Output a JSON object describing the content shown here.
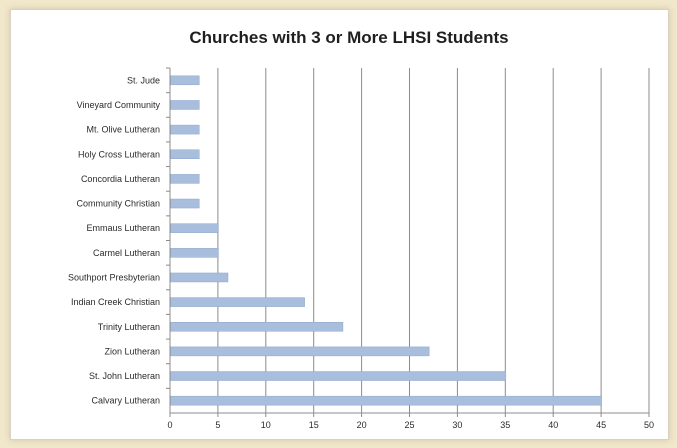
{
  "chart_data": {
    "type": "bar",
    "orientation": "horizontal",
    "title": "Churches with 3 or More LHSI Students",
    "xlabel": "",
    "ylabel": "",
    "categories": [
      "St. Jude",
      "Vineyard Community",
      "Mt. Olive Lutheran",
      "Holy Cross Lutheran",
      "Concordia Lutheran",
      "Community Christian",
      "Emmaus Lutheran",
      "Carmel Lutheran",
      "Southport Presbyterian",
      "Indian Creek Christian",
      "Trinity Lutheran",
      "Zion Lutheran",
      "St. John Lutheran",
      "Calvary Lutheran"
    ],
    "values": [
      3,
      3,
      3,
      3,
      3,
      3,
      5,
      5,
      6,
      14,
      18,
      27,
      35,
      45
    ],
    "xlim": [
      0,
      50
    ],
    "xticks": [
      "0",
      "5",
      "10",
      "15",
      "20",
      "25",
      "30",
      "35",
      "40",
      "45",
      "50"
    ],
    "grid": "vertical",
    "legend": "none",
    "colors": {
      "bar": "#a9bedc",
      "bar_edge": "#8ea7cb",
      "grid": "#8c8c8c",
      "axis": "#8c8c8c"
    }
  }
}
